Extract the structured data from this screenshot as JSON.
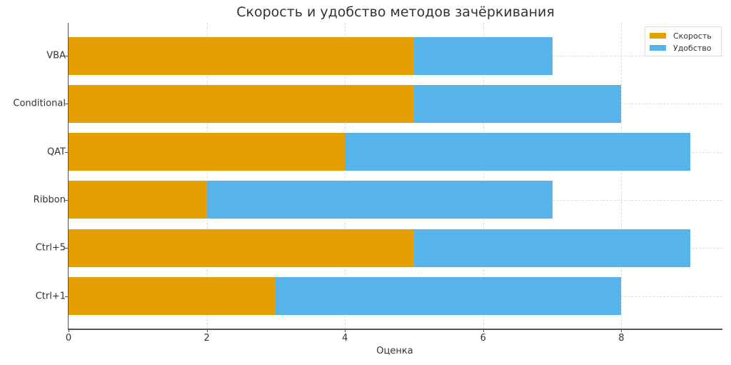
{
  "chart_data": {
    "type": "bar",
    "orientation": "horizontal",
    "stacked": true,
    "title": "Скорость и удобство методов зачёркивания",
    "xlabel": "Оценка",
    "ylabel": "",
    "categories": [
      "VBA",
      "Conditional",
      "QAT",
      "Ribbon",
      "Ctrl+5",
      "Ctrl+1"
    ],
    "series": [
      {
        "name": "Скорость",
        "color": "#E69F00",
        "values": [
          5,
          5,
          4,
          2,
          5,
          3
        ]
      },
      {
        "name": "Удобство",
        "color": "#56B4E9",
        "values": [
          2,
          3,
          5,
          5,
          4,
          5
        ]
      }
    ],
    "xlim": [
      0,
      9.45
    ],
    "xticks": [
      0,
      2,
      4,
      6,
      8
    ],
    "grid": true,
    "legend_position": "upper right"
  },
  "colors": {
    "speed": "#E69F00",
    "convenience": "#56B4E9",
    "text": "#333333",
    "axis": "#555555",
    "grid": "#dddddd"
  }
}
